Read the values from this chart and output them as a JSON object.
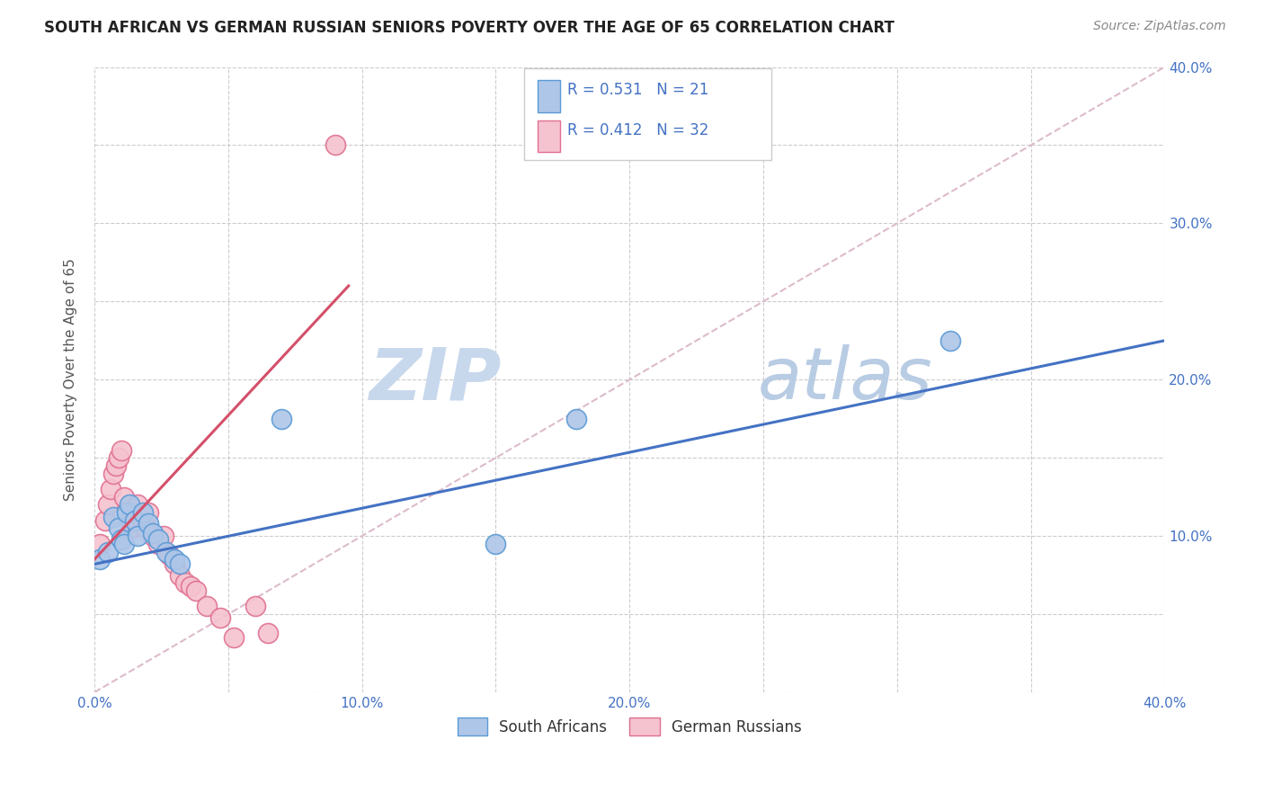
{
  "title": "SOUTH AFRICAN VS GERMAN RUSSIAN SENIORS POVERTY OVER THE AGE OF 65 CORRELATION CHART",
  "source": "Source: ZipAtlas.com",
  "ylabel": "Seniors Poverty Over the Age of 65",
  "xlim": [
    0.0,
    0.4
  ],
  "ylim": [
    0.0,
    0.4
  ],
  "right_ytick_labels": [
    "10.0%",
    "20.0%",
    "30.0%",
    "40.0%"
  ],
  "right_ytick_vals": [
    0.1,
    0.2,
    0.3,
    0.4
  ],
  "south_african_color": "#aec6e8",
  "south_african_edge": "#5b9bd5",
  "german_russian_color": "#f5c2d0",
  "german_russian_edge": "#e07090",
  "trend_sa_color": "#4472c4",
  "trend_gr_color": "#d4506a",
  "diagonal_color": "#ddbbcc",
  "watermark_color": "#dce8f5",
  "legend_r_color": "#4472c4",
  "R_sa": 0.531,
  "N_sa": 21,
  "R_gr": 0.412,
  "N_gr": 32,
  "sa_trend_x": [
    0.0,
    0.4
  ],
  "sa_trend_y": [
    0.082,
    0.225
  ],
  "gr_trend_x": [
    0.0,
    0.095
  ],
  "gr_trend_y": [
    0.085,
    0.26
  ],
  "south_african_x": [
    0.002,
    0.005,
    0.007,
    0.009,
    0.01,
    0.011,
    0.012,
    0.013,
    0.015,
    0.016,
    0.018,
    0.02,
    0.022,
    0.024,
    0.027,
    0.03,
    0.032,
    0.18,
    0.32,
    0.15,
    0.07
  ],
  "south_african_y": [
    0.085,
    0.09,
    0.112,
    0.105,
    0.098,
    0.095,
    0.115,
    0.12,
    0.11,
    0.1,
    0.115,
    0.108,
    0.102,
    0.098,
    0.09,
    0.085,
    0.082,
    0.175,
    0.225,
    0.095,
    0.175
  ],
  "german_russian_x": [
    0.002,
    0.004,
    0.005,
    0.006,
    0.007,
    0.008,
    0.009,
    0.01,
    0.011,
    0.012,
    0.013,
    0.014,
    0.015,
    0.016,
    0.018,
    0.019,
    0.02,
    0.022,
    0.024,
    0.026,
    0.028,
    0.03,
    0.032,
    0.034,
    0.036,
    0.038,
    0.042,
    0.047,
    0.052,
    0.06,
    0.065,
    0.09
  ],
  "german_russian_y": [
    0.095,
    0.11,
    0.12,
    0.13,
    0.14,
    0.145,
    0.15,
    0.155,
    0.125,
    0.115,
    0.11,
    0.105,
    0.115,
    0.12,
    0.11,
    0.105,
    0.115,
    0.1,
    0.095,
    0.1,
    0.088,
    0.082,
    0.075,
    0.07,
    0.068,
    0.065,
    0.055,
    0.048,
    0.035,
    0.055,
    0.038,
    0.35
  ]
}
